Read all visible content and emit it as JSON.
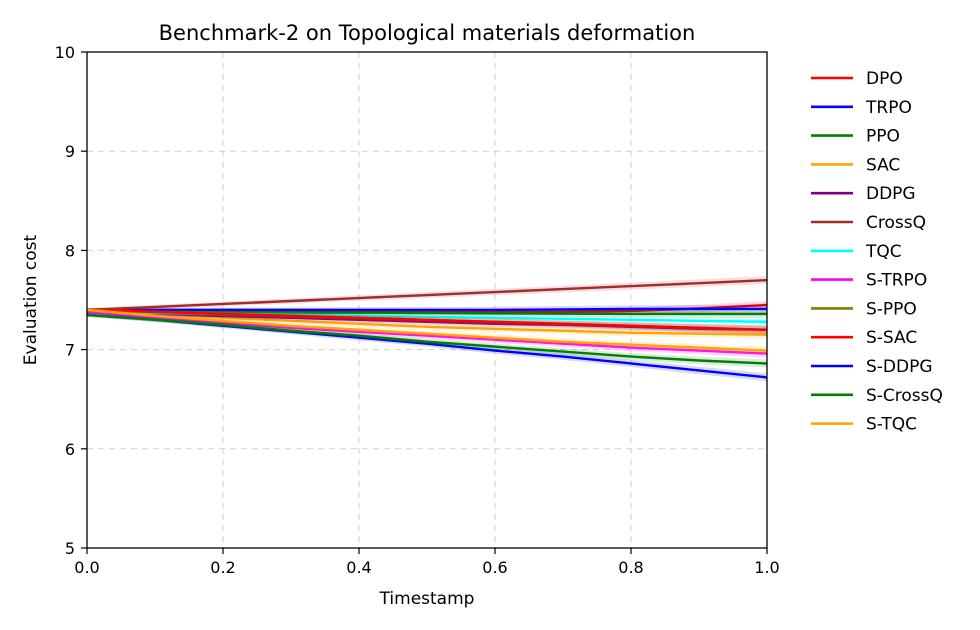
{
  "chart_data": {
    "type": "line",
    "title": "Benchmark-2 on Topological materials deformation",
    "xlabel": "Timestamp",
    "ylabel": "Evaluation cost",
    "xlim": [
      0.0,
      1.0
    ],
    "ylim": [
      5,
      10
    ],
    "xticks": [
      "0.0",
      "0.2",
      "0.4",
      "0.6",
      "0.8",
      "1.0"
    ],
    "yticks": [
      "5",
      "6",
      "7",
      "8",
      "9",
      "10"
    ],
    "grid": true,
    "legend_position": "right",
    "x": [
      0.0,
      0.1,
      0.2,
      0.3,
      0.4,
      0.5,
      0.6,
      0.7,
      0.8,
      0.9,
      1.0
    ],
    "series": [
      {
        "name": "DPO",
        "color": "#ff0000",
        "values": [
          7.4,
          7.398,
          7.395,
          7.392,
          7.388,
          7.385,
          7.382,
          7.38,
          7.39,
          7.415,
          7.45
        ]
      },
      {
        "name": "TRPO",
        "color": "#0000ff",
        "values": [
          7.4,
          7.4,
          7.4,
          7.4,
          7.4,
          7.4,
          7.4,
          7.405,
          7.41,
          7.41,
          7.41
        ]
      },
      {
        "name": "PPO",
        "color": "#008000",
        "values": [
          7.38,
          7.378,
          7.375,
          7.372,
          7.37,
          7.368,
          7.365,
          7.362,
          7.36,
          7.36,
          7.36
        ]
      },
      {
        "name": "SAC",
        "color": "#ffa500",
        "values": [
          7.4,
          7.36,
          7.32,
          7.29,
          7.26,
          7.23,
          7.21,
          7.19,
          7.17,
          7.16,
          7.15
        ]
      },
      {
        "name": "DDPG",
        "color": "#800080",
        "values": [
          7.38,
          7.36,
          7.34,
          7.32,
          7.3,
          7.28,
          7.26,
          7.25,
          7.23,
          7.21,
          7.2
        ]
      },
      {
        "name": "CrossQ",
        "color": "#a52a2a",
        "values": [
          7.4,
          7.43,
          7.46,
          7.49,
          7.52,
          7.55,
          7.58,
          7.61,
          7.64,
          7.67,
          7.7
        ]
      },
      {
        "name": "TQC",
        "color": "#00ffff",
        "values": [
          7.38,
          7.37,
          7.36,
          7.35,
          7.34,
          7.33,
          7.32,
          7.31,
          7.3,
          7.29,
          7.28
        ]
      },
      {
        "name": "S-TRPO",
        "color": "#ff00ff",
        "values": [
          7.38,
          7.32,
          7.27,
          7.22,
          7.18,
          7.14,
          7.1,
          7.06,
          7.02,
          6.99,
          6.96
        ]
      },
      {
        "name": "S-PPO",
        "color": "#808000",
        "values": [
          7.4,
          7.38,
          7.36,
          7.34,
          7.32,
          7.3,
          7.28,
          7.26,
          7.24,
          7.22,
          7.2
        ]
      },
      {
        "name": "S-SAC",
        "color": "#ff0000",
        "values": [
          7.4,
          7.38,
          7.36,
          7.34,
          7.32,
          7.3,
          7.28,
          7.26,
          7.24,
          7.22,
          7.2
        ]
      },
      {
        "name": "S-DDPG",
        "color": "#0000ff",
        "values": [
          7.35,
          7.3,
          7.24,
          7.18,
          7.12,
          7.06,
          6.99,
          6.93,
          6.86,
          6.79,
          6.72
        ]
      },
      {
        "name": "S-CrossQ",
        "color": "#008000",
        "values": [
          7.35,
          7.3,
          7.25,
          7.19,
          7.14,
          7.08,
          7.03,
          6.98,
          6.93,
          6.89,
          6.86
        ]
      },
      {
        "name": "S-TQC",
        "color": "#ffa500",
        "values": [
          7.4,
          7.34,
          7.29,
          7.24,
          7.2,
          7.16,
          7.12,
          7.08,
          7.05,
          7.02,
          6.99
        ]
      }
    ]
  }
}
